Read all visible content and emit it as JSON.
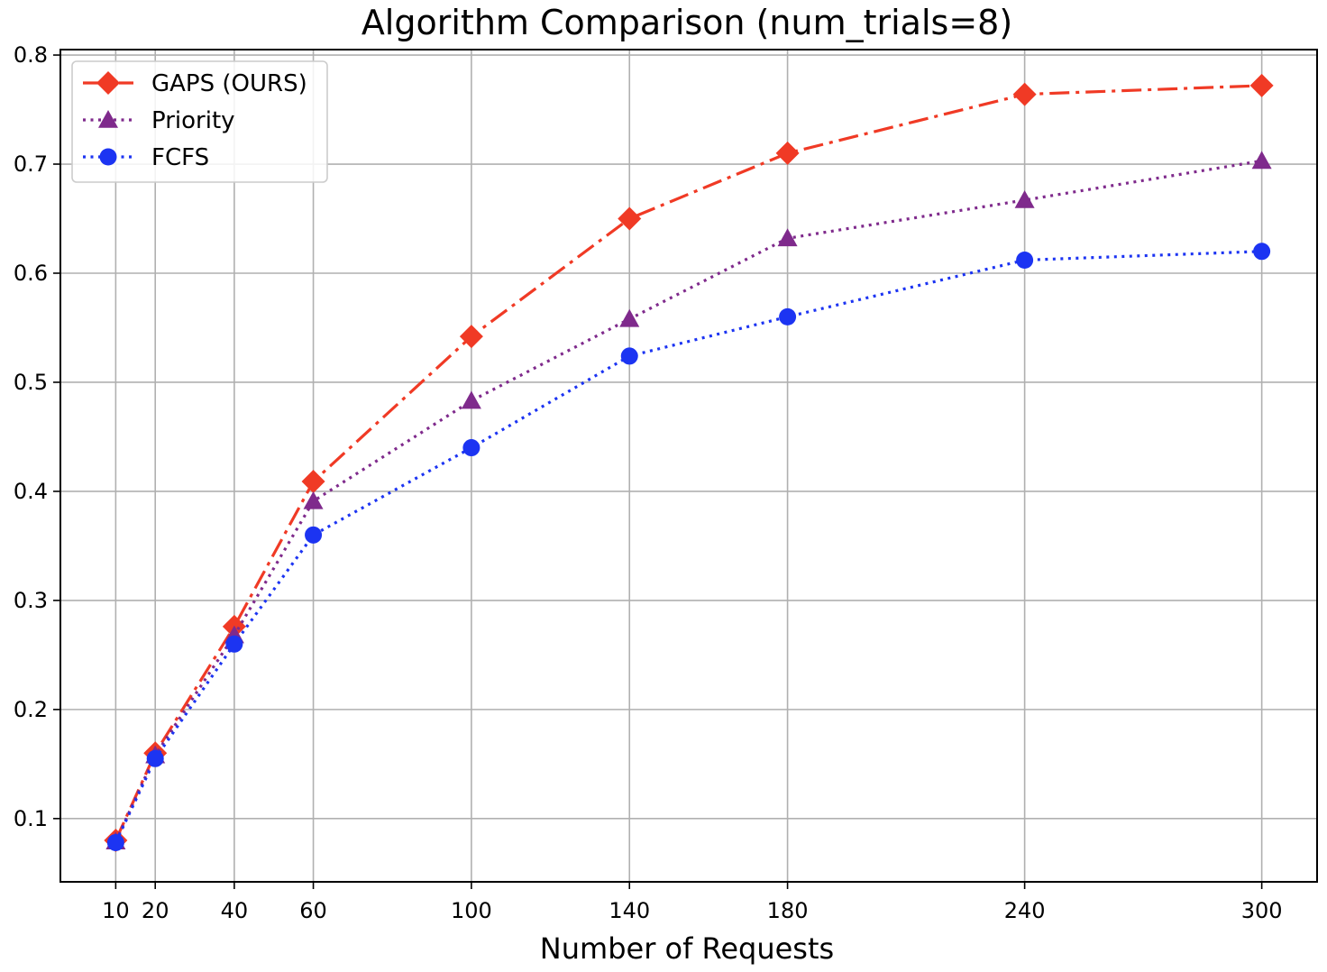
{
  "chart_data": {
    "type": "line",
    "title": "Algorithm Comparison (num_trials=8)",
    "xlabel": "Number of Requests",
    "ylabel": "",
    "x": [
      10,
      20,
      40,
      60,
      100,
      140,
      180,
      240,
      300
    ],
    "x_ticks": [
      "10",
      "20",
      "40",
      "60",
      "100",
      "140",
      "180",
      "240",
      "300"
    ],
    "y_ticks": [
      "0.1",
      "0.2",
      "0.3",
      "0.4",
      "0.5",
      "0.6",
      "0.7",
      "0.8"
    ],
    "xlim": [
      -4,
      314
    ],
    "ylim": [
      0.042,
      0.805
    ],
    "grid": true,
    "legend_position": "top-left",
    "series": [
      {
        "name": "GAPS (OURS)",
        "color": "#f03a25",
        "line_style": "dash-dot",
        "marker": "diamond",
        "values": [
          0.08,
          0.16,
          0.276,
          0.409,
          0.542,
          0.65,
          0.71,
          0.764,
          0.772
        ]
      },
      {
        "name": "Priority",
        "color": "#7f2a8c",
        "line_style": "dotted",
        "marker": "triangle",
        "values": [
          0.079,
          0.158,
          0.268,
          0.391,
          0.483,
          0.558,
          0.632,
          0.667,
          0.703
        ]
      },
      {
        "name": "FCFS",
        "color": "#1c34f2",
        "line_style": "dotted",
        "marker": "circle",
        "values": [
          0.078,
          0.155,
          0.26,
          0.36,
          0.44,
          0.524,
          0.56,
          0.612,
          0.62
        ]
      }
    ]
  }
}
